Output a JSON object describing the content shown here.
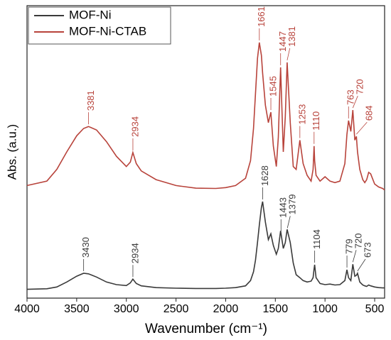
{
  "chart_data": {
    "type": "line",
    "x_label": "Wavenumber (cm⁻¹)",
    "y_label": "Abs. (a.u.)",
    "xlim": [
      4000,
      400
    ],
    "ylim": [
      0,
      100
    ],
    "xticks": [
      4000,
      3500,
      3000,
      2500,
      2000,
      1500,
      1000,
      500
    ],
    "legend": "upper left",
    "x": [
      4000,
      3800,
      3700,
      3600,
      3500,
      3430,
      3381,
      3300,
      3200,
      3100,
      3000,
      2960,
      2934,
      2900,
      2850,
      2700,
      2500,
      2300,
      2100,
      2000,
      1900,
      1800,
      1750,
      1720,
      1700,
      1680,
      1661,
      1640,
      1628,
      1600,
      1570,
      1545,
      1520,
      1490,
      1470,
      1447,
      1420,
      1400,
      1381,
      1350,
      1320,
      1290,
      1253,
      1220,
      1180,
      1140,
      1120,
      1110,
      1104,
      1090,
      1050,
      1000,
      950,
      900,
      850,
      800,
      779,
      763,
      740,
      720,
      700,
      684,
      673,
      650,
      620,
      600,
      580,
      560,
      540,
      500,
      460,
      420,
      400
    ],
    "series": [
      {
        "name": "MOF-Ni",
        "color": "#3a3a3a",
        "values": [
          3.0,
          3.2,
          3.8,
          5.5,
          7.5,
          8.5,
          8.3,
          7.2,
          5.5,
          4.6,
          4.3,
          5.2,
          6.5,
          5.0,
          4.2,
          3.6,
          3.4,
          3.3,
          3.3,
          3.4,
          3.6,
          4.2,
          6,
          9,
          13,
          19,
          25,
          31,
          33,
          26,
          20,
          22,
          18,
          15,
          17,
          23,
          17,
          19,
          23.5,
          19,
          12,
          8,
          7,
          6,
          5.5,
          5.8,
          7,
          10,
          11.4,
          7,
          5,
          4.6,
          4.8,
          4.5,
          4.6,
          6,
          9.7,
          7,
          6,
          11.6,
          7.5,
          7.8,
          8.5,
          5.5,
          4.5,
          4.2,
          4.0,
          4.5,
          4.2,
          3.8,
          3.6,
          3.5,
          3.5
        ],
        "peaks": [
          3430,
          2934,
          1628,
          1443,
          1379,
          1104,
          779,
          720,
          673
        ]
      },
      {
        "name": "MOF-Ni-CTAB",
        "color": "#b8433b",
        "values": [
          38.5,
          40,
          44,
          50,
          55.5,
          58,
          58.7,
          57.5,
          53.5,
          48.5,
          45,
          46.5,
          49.8,
          46,
          43.5,
          40.5,
          38.5,
          37.6,
          37.5,
          37.8,
          38.5,
          41,
          47,
          58,
          70,
          82,
          87.4,
          83,
          77,
          66,
          60,
          63.6,
          52,
          45,
          55,
          78.9,
          50,
          62,
          80.6,
          60,
          45,
          44,
          54,
          46,
          42,
          40,
          44,
          52,
          47,
          42,
          40,
          41.5,
          40,
          39.5,
          40,
          46,
          56,
          60.7,
          57,
          64.3,
          54,
          55.3,
          50,
          44,
          40.5,
          39.5,
          40.5,
          43,
          42.5,
          39,
          38,
          37.5,
          37
        ],
        "peaks": [
          3381,
          2934,
          1661,
          1545,
          1447,
          1381,
          1253,
          1110,
          763,
          720,
          684
        ]
      }
    ]
  }
}
